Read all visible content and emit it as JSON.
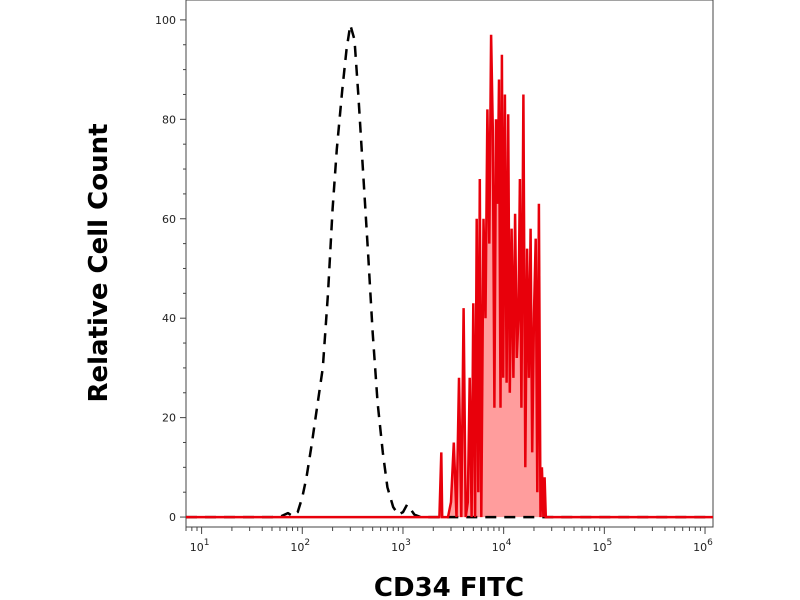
{
  "chart_data": {
    "type": "line",
    "title": "",
    "xlabel": "CD34 FITC",
    "ylabel": "Relative Cell Count",
    "x_scale": "log",
    "xlim": [
      7,
      1200000
    ],
    "ylim": [
      -2,
      104
    ],
    "y_ticks": [
      0,
      20,
      40,
      60,
      80,
      100
    ],
    "x_ticks": [
      {
        "value": 10,
        "base": "10",
        "exp": "1"
      },
      {
        "value": 100,
        "base": "10",
        "exp": "2"
      },
      {
        "value": 1000,
        "base": "10",
        "exp": "3"
      },
      {
        "value": 10000,
        "base": "10",
        "exp": "4"
      },
      {
        "value": 100000,
        "base": "10",
        "exp": "5"
      },
      {
        "value": 1000000,
        "base": "10",
        "exp": "6"
      }
    ],
    "grid": false,
    "series": [
      {
        "style": "dashed",
        "color": "#000000",
        "fill": "none",
        "x": [
          7,
          50,
          62,
          72,
          80,
          90,
          100,
          110,
          125,
          140,
          160,
          180,
          200,
          220,
          250,
          275,
          300,
          330,
          360,
          400,
          450,
          500,
          560,
          630,
          700,
          800,
          900,
          1000,
          1100,
          1200,
          1300,
          1500,
          2000,
          5000,
          100000,
          1200000
        ],
        "y": [
          0,
          0,
          0.2,
          0.8,
          0.2,
          1,
          4,
          8,
          15,
          22,
          30,
          45,
          62,
          74,
          86,
          94,
          99,
          96,
          85,
          70,
          53,
          37,
          23,
          13,
          6,
          2,
          0.5,
          1,
          2.5,
          1.5,
          0.5,
          0,
          0,
          0,
          0,
          0
        ]
      },
      {
        "style": "solid",
        "color": "#e8000b",
        "fill": "#ff9d9d",
        "x": [
          7,
          2000,
          2300,
          2400,
          2450,
          2600,
          2800,
          3000,
          3200,
          3400,
          3600,
          3800,
          4000,
          4200,
          4400,
          4600,
          4800,
          5000,
          5200,
          5400,
          5600,
          5800,
          6000,
          6300,
          6600,
          6900,
          7200,
          7500,
          7800,
          8100,
          8400,
          8700,
          9000,
          9300,
          9600,
          9900,
          10300,
          10700,
          11100,
          11500,
          12000,
          12500,
          13000,
          13500,
          14000,
          14500,
          15000,
          15700,
          16400,
          17100,
          17800,
          18500,
          19200,
          20000,
          20800,
          21600,
          22400,
          23200,
          24000,
          24800,
          25500,
          26200,
          27000,
          27800,
          29000,
          32000,
          1200000
        ],
        "y": [
          0,
          0,
          0,
          13,
          0,
          0,
          0,
          3,
          15,
          0,
          28,
          0,
          42,
          0,
          3,
          28,
          0,
          43,
          0,
          60,
          5,
          68,
          0,
          60,
          40,
          82,
          55,
          97,
          78,
          22,
          80,
          63,
          88,
          22,
          93,
          28,
          85,
          27,
          81,
          25,
          58,
          28,
          61,
          32,
          40,
          68,
          22,
          85,
          10,
          54,
          28,
          58,
          13,
          41,
          56,
          5,
          63,
          0,
          10,
          0,
          8,
          0,
          0,
          0,
          0,
          0,
          0
        ]
      }
    ]
  }
}
